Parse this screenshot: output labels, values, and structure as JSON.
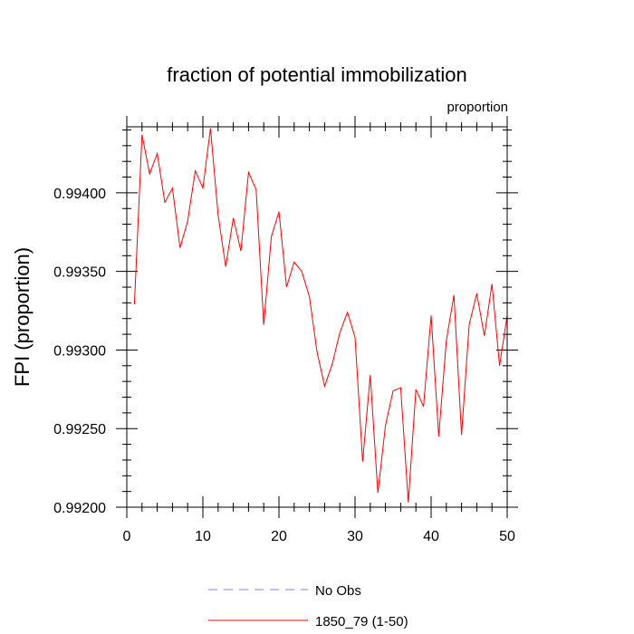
{
  "chart_data": {
    "type": "line",
    "title": "fraction of potential immobilization",
    "units_label": "proportion",
    "xlabel": "",
    "ylabel": "FPI  (proportion)",
    "xlim": [
      0,
      50
    ],
    "ylim": [
      0.992,
      0.99442
    ],
    "x_ticks": [
      0,
      10,
      20,
      30,
      40,
      50
    ],
    "x_tick_labels": [
      "0",
      "10",
      "20",
      "30",
      "40",
      "50"
    ],
    "y_ticks": [
      0.992,
      0.9925,
      0.993,
      0.9935,
      0.994
    ],
    "y_tick_labels": [
      "0.99200",
      "0.99250",
      "0.99300",
      "0.99350",
      "0.99400"
    ],
    "series": [
      {
        "name": "No Obs",
        "color": "#8080ff",
        "dash": "dashed",
        "x": [],
        "values": []
      },
      {
        "name": "1850_79 (1-50)",
        "color": "#ff0000",
        "dash": "solid",
        "x": [
          1,
          2,
          3,
          4,
          5,
          6,
          7,
          8,
          9,
          10,
          11,
          12,
          13,
          14,
          15,
          16,
          17,
          18,
          19,
          20,
          21,
          22,
          23,
          24,
          25,
          26,
          27,
          28,
          29,
          30,
          31,
          32,
          33,
          34,
          35,
          36,
          37,
          38,
          39,
          40,
          41,
          42,
          43,
          44,
          45,
          46,
          47,
          48,
          49,
          50
        ],
        "values": [
          0.99329,
          0.99437,
          0.99412,
          0.99425,
          0.99394,
          0.99403,
          0.99365,
          0.99382,
          0.99414,
          0.99403,
          0.99441,
          0.99386,
          0.99353,
          0.99384,
          0.99363,
          0.99413,
          0.99402,
          0.99316,
          0.99372,
          0.99388,
          0.9934,
          0.99356,
          0.9935,
          0.99334,
          0.99299,
          0.99277,
          0.99291,
          0.99311,
          0.99324,
          0.99308,
          0.99229,
          0.99284,
          0.99209,
          0.99252,
          0.99274,
          0.99276,
          0.99203,
          0.99275,
          0.99264,
          0.99322,
          0.99245,
          0.99306,
          0.99335,
          0.99246,
          0.99316,
          0.99336,
          0.99309,
          0.99342,
          0.9929,
          0.99322
        ]
      }
    ],
    "legend": [
      {
        "label": "No Obs",
        "color": "#8080ff",
        "dash": "dashed"
      },
      {
        "label": "1850_79 (1-50)",
        "color": "#ff0000",
        "dash": "solid"
      }
    ]
  }
}
